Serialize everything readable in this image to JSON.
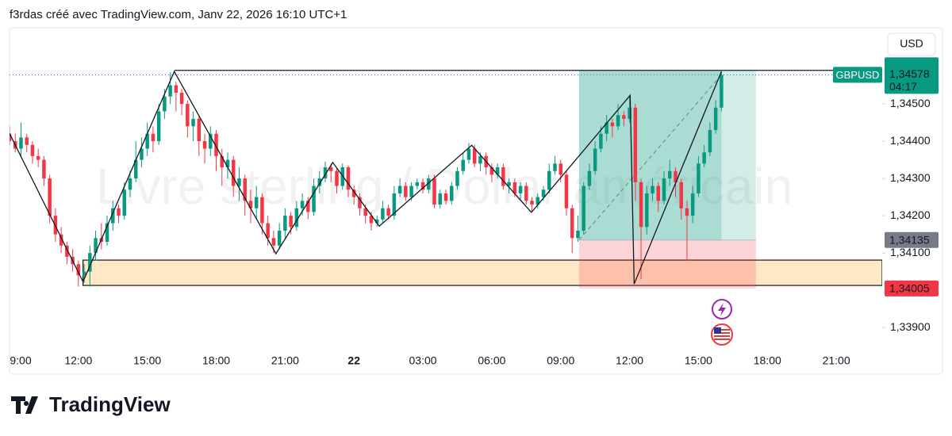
{
  "chart_data": {
    "type": "candlestick",
    "header": "f3rdas créé avec TradingView.com, Janv 22, 2026 16:10 UTC+1",
    "watermark": "Livre sterling / Dollar américain",
    "currency": "USD",
    "symbol": "GBPUSD",
    "brand": "TradingView",
    "last_price": {
      "value": 1.34578,
      "label": "1,34578"
    },
    "countdown": "04:17",
    "up_color": "#089981",
    "down_color": "#f23645",
    "xlim": [
      0,
      152
    ],
    "ylim": [
      1.33843,
      1.34698
    ],
    "yticks": [
      {
        "value": 1.339,
        "label": "1,33900"
      },
      {
        "value": 1.341,
        "label": "1,34100"
      },
      {
        "value": 1.342,
        "label": "1,34200"
      },
      {
        "value": 1.343,
        "label": "1,34300"
      },
      {
        "value": 1.344,
        "label": "1,34400"
      },
      {
        "value": 1.345,
        "label": "1,34500"
      }
    ],
    "xticks": [
      {
        "value": 0,
        "label": "9:00"
      },
      {
        "value": 12,
        "label": "12:00"
      },
      {
        "value": 24,
        "label": "15:00"
      },
      {
        "value": 36,
        "label": "18:00"
      },
      {
        "value": 48,
        "label": "21:00"
      },
      {
        "value": 60,
        "label": "22"
      },
      {
        "value": 72,
        "label": "03:00"
      },
      {
        "value": 84,
        "label": "06:00"
      },
      {
        "value": 96,
        "label": "09:00"
      },
      {
        "value": 108,
        "label": "12:00"
      },
      {
        "value": 120,
        "label": "15:00"
      },
      {
        "value": 132,
        "label": "18:00"
      },
      {
        "value": 144,
        "label": "21:00"
      }
    ],
    "candles": [
      [
        1.3442,
        1.3444,
        1.3439,
        1.344
      ],
      [
        1.344,
        1.3442,
        1.3437,
        1.3438
      ],
      [
        1.3438,
        1.3445,
        1.3436,
        1.3441
      ],
      [
        1.3441,
        1.3442,
        1.3437,
        1.3439
      ],
      [
        1.3439,
        1.344,
        1.3434,
        1.3436
      ],
      [
        1.3436,
        1.3438,
        1.3433,
        1.3435
      ],
      [
        1.3435,
        1.3436,
        1.3428,
        1.343
      ],
      [
        1.343,
        1.3431,
        1.3418,
        1.342
      ],
      [
        1.342,
        1.3422,
        1.3413,
        1.3415
      ],
      [
        1.3415,
        1.3417,
        1.341,
        1.3412
      ],
      [
        1.3412,
        1.3413,
        1.3407,
        1.3409
      ],
      [
        1.3409,
        1.3411,
        1.3405,
        1.3407
      ],
      [
        1.3407,
        1.3408,
        1.3401,
        1.3404
      ],
      [
        1.3404,
        1.3407,
        1.3402,
        1.3405
      ],
      [
        1.3405,
        1.3412,
        1.3401,
        1.341
      ],
      [
        1.341,
        1.3416,
        1.3408,
        1.3414
      ],
      [
        1.3414,
        1.3418,
        1.3411,
        1.3413
      ],
      [
        1.3413,
        1.342,
        1.3412,
        1.3418
      ],
      [
        1.3418,
        1.3424,
        1.3416,
        1.3422
      ],
      [
        1.3422,
        1.3423,
        1.3418,
        1.342
      ],
      [
        1.342,
        1.3429,
        1.3419,
        1.3427
      ],
      [
        1.3427,
        1.3432,
        1.3425,
        1.343
      ],
      [
        1.343,
        1.344,
        1.3429,
        1.3435
      ],
      [
        1.3435,
        1.3441,
        1.3433,
        1.3438
      ],
      [
        1.3438,
        1.3445,
        1.3436,
        1.3442
      ],
      [
        1.3442,
        1.3444,
        1.3437,
        1.344
      ],
      [
        1.344,
        1.345,
        1.3439,
        1.3448
      ],
      [
        1.3448,
        1.3454,
        1.3446,
        1.3452
      ],
      [
        1.3452,
        1.34585,
        1.345,
        1.3455
      ],
      [
        1.3455,
        1.3456,
        1.3448,
        1.3453
      ],
      [
        1.3453,
        1.3454,
        1.3447,
        1.345
      ],
      [
        1.345,
        1.3451,
        1.3441,
        1.3444
      ],
      [
        1.3444,
        1.3448,
        1.344,
        1.3446
      ],
      [
        1.3446,
        1.3447,
        1.3436,
        1.344
      ],
      [
        1.344,
        1.3442,
        1.3434,
        1.3438
      ],
      [
        1.3438,
        1.3444,
        1.3436,
        1.3442
      ],
      [
        1.3442,
        1.3443,
        1.3432,
        1.3436
      ],
      [
        1.3436,
        1.3438,
        1.3428,
        1.3433
      ],
      [
        1.3433,
        1.3437,
        1.343,
        1.3435
      ],
      [
        1.3435,
        1.3436,
        1.3425,
        1.3428
      ],
      [
        1.3428,
        1.3433,
        1.3424,
        1.343
      ],
      [
        1.343,
        1.3431,
        1.342,
        1.3424
      ],
      [
        1.3424,
        1.3427,
        1.3418,
        1.3422
      ],
      [
        1.3422,
        1.3428,
        1.3419,
        1.3425
      ],
      [
        1.3425,
        1.3426,
        1.3415,
        1.3418
      ],
      [
        1.3418,
        1.342,
        1.3412,
        1.3414
      ],
      [
        1.3414,
        1.3416,
        1.341,
        1.3412
      ],
      [
        1.3412,
        1.3418,
        1.3411,
        1.3416
      ],
      [
        1.3416,
        1.3422,
        1.3414,
        1.342
      ],
      [
        1.342,
        1.3421,
        1.3415,
        1.3417
      ],
      [
        1.3417,
        1.3424,
        1.3416,
        1.3422
      ],
      [
        1.3422,
        1.3426,
        1.342,
        1.3424
      ],
      [
        1.3424,
        1.3425,
        1.3419,
        1.3421
      ],
      [
        1.3421,
        1.343,
        1.342,
        1.3428
      ],
      [
        1.3428,
        1.3432,
        1.3426,
        1.343
      ],
      [
        1.343,
        1.34345,
        1.3429,
        1.3433
      ],
      [
        1.3433,
        1.3434,
        1.3429,
        1.3432
      ],
      [
        1.3432,
        1.3433,
        1.3426,
        1.3428
      ],
      [
        1.3428,
        1.3434,
        1.3427,
        1.3433
      ],
      [
        1.3433,
        1.34335,
        1.3425,
        1.3427
      ],
      [
        1.3427,
        1.3428,
        1.3423,
        1.3425
      ],
      [
        1.3425,
        1.3426,
        1.342,
        1.3422
      ],
      [
        1.3422,
        1.3423,
        1.3418,
        1.342
      ],
      [
        1.342,
        1.3421,
        1.3416,
        1.3418
      ],
      [
        1.3418,
        1.342,
        1.3417,
        1.3419
      ],
      [
        1.3419,
        1.3424,
        1.3418,
        1.3422
      ],
      [
        1.3422,
        1.3423,
        1.3419,
        1.342
      ],
      [
        1.342,
        1.3428,
        1.3419,
        1.3426
      ],
      [
        1.3426,
        1.343,
        1.3425,
        1.3428
      ],
      [
        1.3428,
        1.3429,
        1.3424,
        1.3425
      ],
      [
        1.3425,
        1.3429,
        1.3424,
        1.3428
      ],
      [
        1.3428,
        1.343,
        1.3427,
        1.3429
      ],
      [
        1.3429,
        1.343,
        1.3426,
        1.3427
      ],
      [
        1.3427,
        1.3431,
        1.3426,
        1.343
      ],
      [
        1.343,
        1.3431,
        1.3422,
        1.3423
      ],
      [
        1.3423,
        1.3427,
        1.3422,
        1.3426
      ],
      [
        1.3426,
        1.3427,
        1.3423,
        1.3424
      ],
      [
        1.3424,
        1.3429,
        1.3423,
        1.3428
      ],
      [
        1.3428,
        1.3433,
        1.3427,
        1.3432
      ],
      [
        1.3432,
        1.3437,
        1.3431,
        1.3435
      ],
      [
        1.3435,
        1.34395,
        1.3434,
        1.3438
      ],
      [
        1.3438,
        1.3439,
        1.3433,
        1.3434
      ],
      [
        1.3434,
        1.3437,
        1.3432,
        1.3436
      ],
      [
        1.3436,
        1.3437,
        1.3431,
        1.3433
      ],
      [
        1.3433,
        1.3434,
        1.3429,
        1.3431
      ],
      [
        1.3431,
        1.3434,
        1.343,
        1.3433
      ],
      [
        1.3433,
        1.3434,
        1.3427,
        1.3428
      ],
      [
        1.3428,
        1.343,
        1.3426,
        1.3429
      ],
      [
        1.3429,
        1.343,
        1.3425,
        1.3426
      ],
      [
        1.3426,
        1.3429,
        1.3424,
        1.3428
      ],
      [
        1.3428,
        1.3429,
        1.3423,
        1.3424
      ],
      [
        1.3424,
        1.3425,
        1.3421,
        1.3423
      ],
      [
        1.3423,
        1.3426,
        1.3422,
        1.3425
      ],
      [
        1.3425,
        1.3428,
        1.3424,
        1.3427
      ],
      [
        1.3427,
        1.3434,
        1.3426,
        1.3432
      ],
      [
        1.3432,
        1.3436,
        1.3431,
        1.3434
      ],
      [
        1.3434,
        1.3435,
        1.3429,
        1.3431
      ],
      [
        1.3431,
        1.3432,
        1.342,
        1.3422
      ],
      [
        1.3422,
        1.3423,
        1.341,
        1.3414
      ],
      [
        1.3414,
        1.342,
        1.3413,
        1.3416
      ],
      [
        1.3416,
        1.3429,
        1.3415,
        1.3428
      ],
      [
        1.3428,
        1.3434,
        1.3427,
        1.3432
      ],
      [
        1.3432,
        1.344,
        1.3431,
        1.3438
      ],
      [
        1.3438,
        1.3444,
        1.3437,
        1.3442
      ],
      [
        1.3442,
        1.3447,
        1.344,
        1.3445
      ],
      [
        1.3445,
        1.3446,
        1.3441,
        1.3444
      ],
      [
        1.3444,
        1.345,
        1.3443,
        1.3447
      ],
      [
        1.3447,
        1.3448,
        1.3444,
        1.3446
      ],
      [
        1.3446,
        1.3452,
        1.3445,
        1.3449
      ],
      [
        1.3449,
        1.345,
        1.3424,
        1.3429
      ],
      [
        1.3429,
        1.343,
        1.3403,
        1.3417
      ],
      [
        1.3417,
        1.3428,
        1.3415,
        1.3426
      ],
      [
        1.3426,
        1.343,
        1.3424,
        1.3428
      ],
      [
        1.3428,
        1.3429,
        1.3421,
        1.3424
      ],
      [
        1.3424,
        1.3432,
        1.3423,
        1.343
      ],
      [
        1.343,
        1.3435,
        1.3428,
        1.3432
      ],
      [
        1.3432,
        1.3433,
        1.3425,
        1.3429
      ],
      [
        1.3429,
        1.343,
        1.3419,
        1.3422
      ],
      [
        1.3422,
        1.3424,
        1.3408,
        1.342
      ],
      [
        1.342,
        1.3428,
        1.3418,
        1.3426
      ],
      [
        1.3426,
        1.3436,
        1.3425,
        1.3434
      ],
      [
        1.3434,
        1.3439,
        1.3433,
        1.3437
      ],
      [
        1.3437,
        1.3445,
        1.3436,
        1.3443
      ],
      [
        1.3443,
        1.3451,
        1.3442,
        1.3449
      ],
      [
        1.3449,
        1.34588,
        1.3448,
        1.34578
      ]
    ],
    "zigzag": {
      "x": [
        0,
        12.8,
        28.7,
        46.4,
        56.3,
        64.4,
        80.5,
        90.9,
        108.1,
        108.8,
        124
      ],
      "y": [
        1.34421,
        1.34023,
        1.34587,
        1.34098,
        1.34343,
        1.34172,
        1.34389,
        1.34209,
        1.34523,
        1.34017,
        1.34587
      ]
    },
    "resistance": {
      "value": 1.3459,
      "start": 28.7
    },
    "zone": {
      "low": 1.34013,
      "high": 1.34081,
      "start": 12.8
    },
    "position": {
      "entry": {
        "value": 1.34135,
        "label": "1,34135"
      },
      "stop": {
        "value": 1.34005,
        "label": "1,34005"
      },
      "target": 1.3459,
      "start": 99.2,
      "now": 124,
      "end": 130
    }
  }
}
